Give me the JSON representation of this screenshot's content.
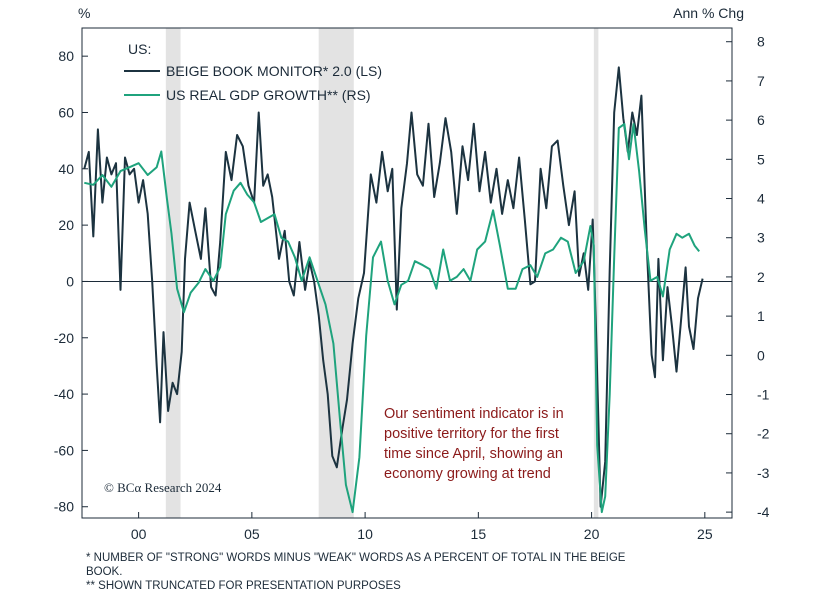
{
  "chart_data": {
    "type": "line",
    "left_axis_unit": "%",
    "right_axis_unit": "Ann % Chg",
    "x_tick_labels": [
      {
        "year": 2000,
        "label": "00"
      },
      {
        "year": 2005,
        "label": "05"
      },
      {
        "year": 2010,
        "label": "10"
      },
      {
        "year": 2015,
        "label": "15"
      },
      {
        "year": 2020,
        "label": "20"
      },
      {
        "year": 2025,
        "label": "25"
      }
    ],
    "xlim": [
      1997.5,
      2026.2
    ],
    "left_ylim": [
      -84,
      90
    ],
    "left_ticks": [
      80,
      60,
      40,
      20,
      0,
      -20,
      -40,
      -60,
      -80
    ],
    "right_ylim": [
      -4.15,
      8.35
    ],
    "right_ticks": [
      8,
      7,
      6,
      5,
      4,
      3,
      2,
      1,
      0,
      -1,
      -2,
      -3,
      -4
    ],
    "zero_line": true,
    "recessions": [
      [
        2001.2,
        2001.85
      ],
      [
        2007.95,
        2009.5
      ],
      [
        2020.1,
        2020.3
      ]
    ],
    "legend_title": "US:",
    "legend_placement": "top-left",
    "colors": {
      "beige": "#1c3340",
      "gdp": "#1fa37d",
      "recession": "#e3e3e3",
      "annotation": "#8b1a1a",
      "axis": "#1c2b39"
    },
    "series": [
      {
        "name": "BEIGE BOOK MONITOR* 2.0 (LS)",
        "axis": "left",
        "points": [
          [
            1997.6,
            40
          ],
          [
            1997.8,
            46
          ],
          [
            1998.0,
            16
          ],
          [
            1998.2,
            54
          ],
          [
            1998.4,
            28
          ],
          [
            1998.6,
            44
          ],
          [
            1998.8,
            38
          ],
          [
            1999.0,
            42
          ],
          [
            1999.2,
            -3
          ],
          [
            1999.4,
            44
          ],
          [
            1999.6,
            38
          ],
          [
            1999.8,
            40
          ],
          [
            2000.0,
            28
          ],
          [
            2000.2,
            36
          ],
          [
            2000.4,
            24
          ],
          [
            2000.6,
            0
          ],
          [
            2000.8,
            -30
          ],
          [
            2000.95,
            -50
          ],
          [
            2001.1,
            -18
          ],
          [
            2001.3,
            -46
          ],
          [
            2001.5,
            -36
          ],
          [
            2001.7,
            -40
          ],
          [
            2001.9,
            -25
          ],
          [
            2002.05,
            8
          ],
          [
            2002.25,
            28
          ],
          [
            2002.5,
            18
          ],
          [
            2002.75,
            8
          ],
          [
            2002.95,
            26
          ],
          [
            2003.2,
            -2
          ],
          [
            2003.4,
            -5
          ],
          [
            2003.6,
            14
          ],
          [
            2003.85,
            46
          ],
          [
            2004.1,
            36
          ],
          [
            2004.35,
            52
          ],
          [
            2004.6,
            48
          ],
          [
            2004.85,
            34
          ],
          [
            2005.1,
            28
          ],
          [
            2005.3,
            60
          ],
          [
            2005.5,
            34
          ],
          [
            2005.7,
            38
          ],
          [
            2005.9,
            30
          ],
          [
            2006.2,
            8
          ],
          [
            2006.45,
            18
          ],
          [
            2006.65,
            0
          ],
          [
            2006.85,
            -5
          ],
          [
            2007.1,
            14
          ],
          [
            2007.35,
            -3
          ],
          [
            2007.55,
            7
          ],
          [
            2007.75,
            0
          ],
          [
            2007.95,
            -12
          ],
          [
            2008.15,
            -28
          ],
          [
            2008.35,
            -40
          ],
          [
            2008.55,
            -62
          ],
          [
            2008.75,
            -66
          ],
          [
            2009.0,
            -52
          ],
          [
            2009.2,
            -42
          ],
          [
            2009.45,
            -22
          ],
          [
            2009.7,
            -6
          ],
          [
            2009.95,
            3
          ],
          [
            2010.25,
            38
          ],
          [
            2010.5,
            28
          ],
          [
            2010.75,
            46
          ],
          [
            2011.0,
            32
          ],
          [
            2011.2,
            40
          ],
          [
            2011.4,
            -10
          ],
          [
            2011.6,
            26
          ],
          [
            2011.85,
            42
          ],
          [
            2012.05,
            60
          ],
          [
            2012.3,
            38
          ],
          [
            2012.55,
            34
          ],
          [
            2012.8,
            56
          ],
          [
            2013.05,
            30
          ],
          [
            2013.3,
            42
          ],
          [
            2013.55,
            58
          ],
          [
            2013.8,
            46
          ],
          [
            2014.05,
            24
          ],
          [
            2014.3,
            48
          ],
          [
            2014.55,
            36
          ],
          [
            2014.8,
            56
          ],
          [
            2015.05,
            32
          ],
          [
            2015.3,
            46
          ],
          [
            2015.55,
            28
          ],
          [
            2015.8,
            40
          ],
          [
            2016.05,
            24
          ],
          [
            2016.3,
            36
          ],
          [
            2016.55,
            26
          ],
          [
            2016.8,
            44
          ],
          [
            2017.05,
            22
          ],
          [
            2017.3,
            -1
          ],
          [
            2017.5,
            0
          ],
          [
            2017.75,
            40
          ],
          [
            2018.0,
            26
          ],
          [
            2018.25,
            48
          ],
          [
            2018.5,
            50
          ],
          [
            2018.75,
            34
          ],
          [
            2019.0,
            20
          ],
          [
            2019.25,
            32
          ],
          [
            2019.45,
            2
          ],
          [
            2019.65,
            10
          ],
          [
            2019.85,
            -3
          ],
          [
            2020.05,
            22
          ],
          [
            2020.2,
            -18
          ],
          [
            2020.4,
            -80
          ],
          [
            2020.6,
            -64
          ],
          [
            2020.8,
            4
          ],
          [
            2021.0,
            60
          ],
          [
            2021.2,
            76
          ],
          [
            2021.4,
            58
          ],
          [
            2021.6,
            46
          ],
          [
            2021.8,
            60
          ],
          [
            2022.0,
            52
          ],
          [
            2022.2,
            66
          ],
          [
            2022.45,
            10
          ],
          [
            2022.65,
            -26
          ],
          [
            2022.8,
            -34
          ],
          [
            2022.95,
            8
          ],
          [
            2023.15,
            -28
          ],
          [
            2023.35,
            -2
          ],
          [
            2023.55,
            -16
          ],
          [
            2023.75,
            -32
          ],
          [
            2023.95,
            -14
          ],
          [
            2024.15,
            5
          ],
          [
            2024.3,
            -16
          ],
          [
            2024.5,
            -24
          ],
          [
            2024.7,
            -6
          ],
          [
            2024.9,
            1
          ]
        ]
      },
      {
        "name": "US REAL GDP GROWTH** (RS)",
        "axis": "right",
        "points": [
          [
            1997.6,
            4.4
          ],
          [
            1998.0,
            4.35
          ],
          [
            1998.4,
            4.6
          ],
          [
            1998.8,
            4.3
          ],
          [
            1999.2,
            4.7
          ],
          [
            1999.6,
            4.8
          ],
          [
            2000.0,
            4.9
          ],
          [
            2000.4,
            4.6
          ],
          [
            2000.8,
            4.8
          ],
          [
            2001.0,
            5.2
          ],
          [
            2001.25,
            4.0
          ],
          [
            2001.45,
            3.1
          ],
          [
            2001.7,
            1.7
          ],
          [
            2002.0,
            1.1
          ],
          [
            2002.3,
            1.6
          ],
          [
            2002.65,
            1.85
          ],
          [
            2002.95,
            2.2
          ],
          [
            2003.3,
            1.9
          ],
          [
            2003.6,
            2.25
          ],
          [
            2003.85,
            3.6
          ],
          [
            2004.2,
            4.2
          ],
          [
            2004.5,
            4.4
          ],
          [
            2004.8,
            4.1
          ],
          [
            2005.1,
            3.9
          ],
          [
            2005.4,
            3.4
          ],
          [
            2005.7,
            3.5
          ],
          [
            2006.0,
            3.6
          ],
          [
            2006.3,
            3.0
          ],
          [
            2006.6,
            2.9
          ],
          [
            2006.9,
            2.5
          ],
          [
            2007.2,
            1.9
          ],
          [
            2007.55,
            2.5
          ],
          [
            2007.9,
            1.9
          ],
          [
            2008.25,
            1.3
          ],
          [
            2008.6,
            0.3
          ],
          [
            2008.9,
            -1.7
          ],
          [
            2009.15,
            -3.3
          ],
          [
            2009.45,
            -4.0
          ],
          [
            2009.75,
            -2.6
          ],
          [
            2010.05,
            0.5
          ],
          [
            2010.35,
            2.5
          ],
          [
            2010.7,
            2.9
          ],
          [
            2011.0,
            1.9
          ],
          [
            2011.3,
            1.3
          ],
          [
            2011.6,
            1.8
          ],
          [
            2011.9,
            1.9
          ],
          [
            2012.2,
            2.4
          ],
          [
            2012.55,
            2.3
          ],
          [
            2012.85,
            2.2
          ],
          [
            2013.15,
            1.7
          ],
          [
            2013.45,
            2.7
          ],
          [
            2013.75,
            1.9
          ],
          [
            2014.05,
            2.0
          ],
          [
            2014.35,
            2.2
          ],
          [
            2014.65,
            1.9
          ],
          [
            2014.95,
            2.7
          ],
          [
            2015.3,
            2.9
          ],
          [
            2015.65,
            3.7
          ],
          [
            2015.95,
            2.8
          ],
          [
            2016.3,
            1.7
          ],
          [
            2016.65,
            1.7
          ],
          [
            2016.95,
            2.2
          ],
          [
            2017.3,
            2.3
          ],
          [
            2017.6,
            2.0
          ],
          [
            2017.95,
            2.6
          ],
          [
            2018.3,
            2.7
          ],
          [
            2018.65,
            3.0
          ],
          [
            2018.95,
            2.9
          ],
          [
            2019.3,
            2.1
          ],
          [
            2019.65,
            2.4
          ],
          [
            2019.95,
            3.3
          ],
          [
            2020.1,
            2.8
          ],
          [
            2020.25,
            -2.3
          ],
          [
            2020.45,
            -4.0
          ],
          [
            2020.6,
            -3.6
          ],
          [
            2020.8,
            -1.0
          ],
          [
            2021.0,
            2.5
          ],
          [
            2021.2,
            5.8
          ],
          [
            2021.45,
            5.9
          ],
          [
            2021.65,
            5.0
          ],
          [
            2021.85,
            5.9
          ],
          [
            2022.1,
            4.7
          ],
          [
            2022.35,
            3.2
          ],
          [
            2022.6,
            1.9
          ],
          [
            2022.9,
            2.0
          ],
          [
            2023.15,
            1.5
          ],
          [
            2023.45,
            2.7
          ],
          [
            2023.75,
            3.1
          ],
          [
            2024.0,
            3.0
          ],
          [
            2024.3,
            3.1
          ],
          [
            2024.55,
            2.8
          ],
          [
            2024.75,
            2.65
          ]
        ]
      }
    ],
    "annotation_lines": [
      "Our sentiment indicator is in",
      "positive territory for the first",
      "time since April, showing an",
      "economy growing at trend"
    ],
    "copyright": "© BCα Research 2024"
  },
  "footnotes": [
    "* NUMBER OF \"STRONG\" WORDS MINUS \"WEAK\" WORDS AS A PERCENT OF TOTAL IN THE BEIGE",
    "BOOK.",
    "** SHOWN TRUNCATED FOR PRESENTATION PURPOSES"
  ]
}
